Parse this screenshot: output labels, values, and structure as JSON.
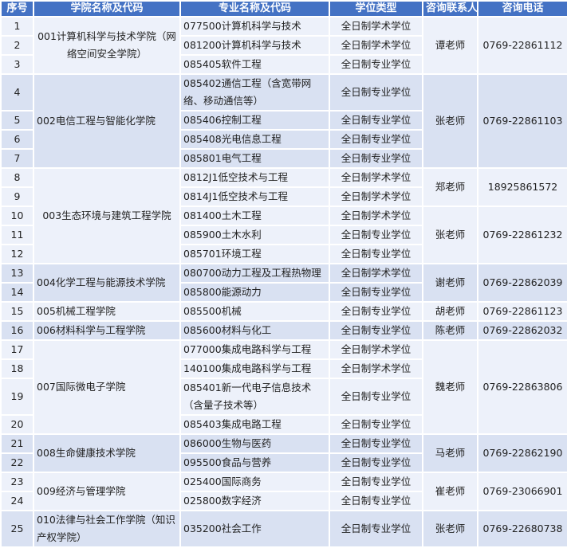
{
  "headers": [
    "序号",
    "学院名称及代码",
    "专业名称及代码",
    "学位类型",
    "咨询联系人",
    "咨询电话"
  ],
  "colleges": [
    {
      "name": "001计算机科学与技术学院（网络空间安全学院）",
      "contacts": [
        {
          "name": "谭老师",
          "phone": "0769-22861112",
          "programs": [
            {
              "no": "1",
              "major": "077500计算机科学与技术",
              "degree": "全日制学术学位"
            },
            {
              "no": "2",
              "major": "081200计算机科学与技术",
              "degree": "全日制学术学位"
            },
            {
              "no": "3",
              "major": "085405软件工程",
              "degree": "全日制专业学位"
            }
          ]
        }
      ]
    },
    {
      "name": "002电信工程与智能化学院",
      "contacts": [
        {
          "name": "张老师",
          "phone": "0769-22861103",
          "programs": [
            {
              "no": "4",
              "major": "085402通信工程（含宽带网络、移动通信等）",
              "degree": "全日制专业学位"
            },
            {
              "no": "5",
              "major": "085406控制工程",
              "degree": "全日制专业学位"
            },
            {
              "no": "6",
              "major": "085408光电信息工程",
              "degree": "全日制专业学位"
            },
            {
              "no": "7",
              "major": "085801电气工程",
              "degree": "全日制专业学位"
            }
          ]
        }
      ]
    },
    {
      "name": "003生态环境与建筑工程学院",
      "contacts": [
        {
          "name": "郑老师",
          "phone": "18925861572",
          "programs": [
            {
              "no": "8",
              "major": "0812J1低空技术与工程",
              "degree": "全日制学术学位"
            },
            {
              "no": "9",
              "major": "0814J1低空技术与工程",
              "degree": "全日制学术学位"
            }
          ]
        },
        {
          "name": "张老师",
          "phone": "0769-22861232",
          "programs": [
            {
              "no": "10",
              "major": "081400土木工程",
              "degree": "全日制学术学位"
            },
            {
              "no": "11",
              "major": "085900土木水利",
              "degree": "全日制专业学位"
            },
            {
              "no": "12",
              "major": "085701环境工程",
              "degree": "全日制专业学位"
            }
          ]
        }
      ]
    },
    {
      "name": "004化学工程与能源技术学院",
      "contacts": [
        {
          "name": "谢老师",
          "phone": "0769-22862039",
          "programs": [
            {
              "no": "13",
              "major": "080700动力工程及工程热物理",
              "degree": "全日制学术学位"
            },
            {
              "no": "14",
              "major": "085800能源动力",
              "degree": "全日制专业学位"
            }
          ]
        }
      ]
    },
    {
      "name": "005机械工程学院",
      "contacts": [
        {
          "name": "胡老师",
          "phone": "0769-22861123",
          "programs": [
            {
              "no": "15",
              "major": "085500机械",
              "degree": "全日制专业学位"
            }
          ]
        }
      ]
    },
    {
      "name": "006材料科学与工程学院",
      "contacts": [
        {
          "name": "陈老师",
          "phone": "0769-22862032",
          "programs": [
            {
              "no": "16",
              "major": "085600材料与化工",
              "degree": "全日制专业学位"
            }
          ]
        }
      ]
    },
    {
      "name": "007国际微电子学院",
      "contacts": [
        {
          "name": "魏老师",
          "phone": "0769-22863806",
          "programs": [
            {
              "no": "17",
              "major": "077000集成电路科学与工程",
              "degree": "全日制学术学位"
            },
            {
              "no": "18",
              "major": "140100集成电路科学与工程",
              "degree": "全日制学术学位"
            },
            {
              "no": "19",
              "major": "085401新一代电子信息技术（含量子技术等）",
              "degree": "全日制专业学位"
            },
            {
              "no": "20",
              "major": "085403集成电路工程",
              "degree": "全日制专业学位"
            }
          ]
        }
      ]
    },
    {
      "name": "008生命健康技术学院",
      "contacts": [
        {
          "name": "马老师",
          "phone": "0769-22862190",
          "programs": [
            {
              "no": "21",
              "major": "086000生物与医药",
              "degree": "全日制专业学位"
            },
            {
              "no": "22",
              "major": "095500食品与营养",
              "degree": "全日制专业学位"
            }
          ]
        }
      ]
    },
    {
      "name": "009经济与管理学院",
      "contacts": [
        {
          "name": "崔老师",
          "phone": "0769-23066901",
          "programs": [
            {
              "no": "23",
              "major": "025400国际商务",
              "degree": "全日制专业学位"
            },
            {
              "no": "24",
              "major": "025800数字经济",
              "degree": "全日制专业学位"
            }
          ]
        }
      ]
    },
    {
      "name": "010法律与社会工作学院（知识产权学院）",
      "contacts": [
        {
          "name": "张老师",
          "phone": "0769-22680738",
          "programs": [
            {
              "no": "25",
              "major": "035200社会工作",
              "degree": "全日制专业学位"
            }
          ]
        }
      ]
    }
  ],
  "colors": {
    "header": "#4472c4",
    "row_light": "#edf1fa",
    "row_dark": "#d9e1f2"
  }
}
